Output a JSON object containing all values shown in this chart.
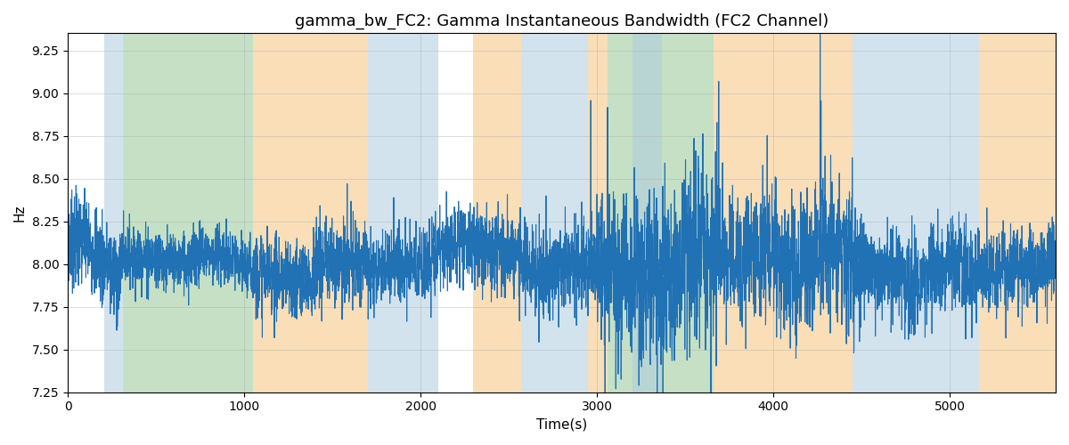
{
  "title": "gamma_bw_FC2: Gamma Instantaneous Bandwidth (FC2 Channel)",
  "xlabel": "Time(s)",
  "ylabel": "Hz",
  "ylim": [
    7.25,
    9.35
  ],
  "xlim": [
    0,
    5600
  ],
  "line_color": "#2171b5",
  "line_width": 0.8,
  "bg_color": "#ffffff",
  "title_fontsize": 13,
  "label_fontsize": 11,
  "yticks": [
    7.25,
    7.5,
    7.75,
    8.0,
    8.25,
    8.5,
    8.75,
    9.0,
    9.25
  ],
  "xticks": [
    0,
    1000,
    2000,
    3000,
    4000,
    5000
  ],
  "bands": [
    {
      "start": 205,
      "end": 315,
      "color": "#aecde0",
      "alpha": 0.55
    },
    {
      "start": 315,
      "end": 1050,
      "color": "#96c896",
      "alpha": 0.55
    },
    {
      "start": 1050,
      "end": 1700,
      "color": "#f5c98a",
      "alpha": 0.6
    },
    {
      "start": 1700,
      "end": 2100,
      "color": "#aecde0",
      "alpha": 0.55
    },
    {
      "start": 2300,
      "end": 2570,
      "color": "#f5c98a",
      "alpha": 0.6
    },
    {
      "start": 2570,
      "end": 2950,
      "color": "#aecde0",
      "alpha": 0.55
    },
    {
      "start": 2950,
      "end": 3060,
      "color": "#f5c98a",
      "alpha": 0.6
    },
    {
      "start": 3060,
      "end": 3660,
      "color": "#96c896",
      "alpha": 0.55
    },
    {
      "start": 3200,
      "end": 3370,
      "color": "#aecde0",
      "alpha": 0.55
    },
    {
      "start": 3660,
      "end": 4450,
      "color": "#f5c98a",
      "alpha": 0.6
    },
    {
      "start": 4450,
      "end": 5060,
      "color": "#aecde0",
      "alpha": 0.55
    },
    {
      "start": 5060,
      "end": 5165,
      "color": "#aecde0",
      "alpha": 0.55
    },
    {
      "start": 5165,
      "end": 5600,
      "color": "#f5c98a",
      "alpha": 0.6
    }
  ],
  "grid_color": "#b0b0b0",
  "grid_alpha": 0.5,
  "grid_linewidth": 0.6,
  "base_mean": 8.0,
  "noise_segments": [
    {
      "start": 0,
      "end": 300,
      "std": 0.14,
      "trend": -0.04
    },
    {
      "start": 300,
      "end": 1050,
      "std": 0.09,
      "trend": 0.0
    },
    {
      "start": 1050,
      "end": 1700,
      "std": 0.12,
      "trend": 0.03
    },
    {
      "start": 1700,
      "end": 2300,
      "std": 0.11,
      "trend": 0.02
    },
    {
      "start": 2300,
      "end": 3000,
      "std": 0.13,
      "trend": 0.01
    },
    {
      "start": 3000,
      "end": 3700,
      "std": 0.25,
      "trend": 0.02
    },
    {
      "start": 3700,
      "end": 4500,
      "std": 0.2,
      "trend": 0.0
    },
    {
      "start": 4500,
      "end": 5600,
      "std": 0.13,
      "trend": 0.0
    }
  ]
}
